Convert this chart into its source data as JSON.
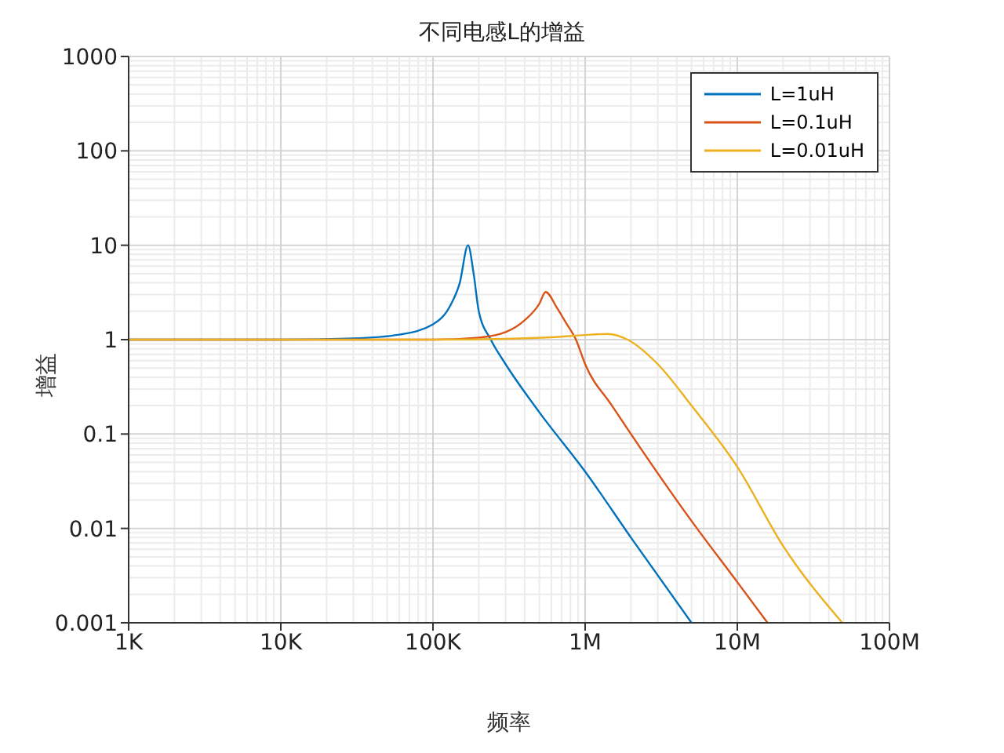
{
  "chart_data": {
    "type": "line",
    "title": "不同电感L的增益",
    "xlabel": "频率",
    "ylabel": "增益",
    "log": "xy",
    "grid": true,
    "legend": "top right",
    "marker": "none",
    "line_style": "solid",
    "xlim": [
      1000,
      100000000
    ],
    "xticks": [
      {
        "value": 1000,
        "label": "1K"
      },
      {
        "value": 10000,
        "label": "10K"
      },
      {
        "value": 100000,
        "label": "100K"
      },
      {
        "value": 1000000,
        "label": "1M"
      },
      {
        "value": 10000000,
        "label": "10M"
      },
      {
        "value": 100000000,
        "label": "100M"
      }
    ],
    "ylim": [
      0.001,
      1000
    ],
    "yticks": [
      0.001,
      0.01,
      0.1,
      1,
      10,
      100,
      1000
    ],
    "series": [
      {
        "name": "L=1uH",
        "color": "#0072bd",
        "x": [
          1000,
          10000,
          30000,
          60000,
          100000,
          130000,
          150000,
          170000,
          185000,
          200000,
          240000,
          300000,
          500000,
          1000000,
          2000000,
          5000000
        ],
        "values": [
          1,
          1,
          1.03,
          1.13,
          1.45,
          2.3,
          4,
          10,
          5,
          2,
          1,
          0.55,
          0.17,
          0.04,
          0.008,
          0.001
        ]
      },
      {
        "name": "L=0.1uH",
        "color": "#d95319",
        "x": [
          1000,
          10000,
          100000,
          200000,
          300000,
          400000,
          500000,
          550000,
          650000,
          750000,
          870000,
          1000000,
          1500000,
          2000000,
          5000000,
          10000000,
          15800000
        ],
        "values": [
          1,
          1,
          1,
          1.05,
          1.2,
          1.6,
          2.4,
          3.2,
          2.2,
          1.5,
          1,
          0.55,
          0.2,
          0.1,
          0.012,
          0.0027,
          0.001
        ]
      },
      {
        "name": "L=0.01uH",
        "color": "#edb120",
        "x": [
          1000,
          10000,
          100000,
          300000,
          600000,
          1000000,
          1400000,
          1900000,
          3000000,
          5000000,
          10000000,
          20000000,
          49000000
        ],
        "values": [
          1,
          1,
          1,
          1.02,
          1.06,
          1.12,
          1.15,
          1,
          0.55,
          0.2,
          0.045,
          0.0065,
          0.001
        ]
      }
    ]
  }
}
